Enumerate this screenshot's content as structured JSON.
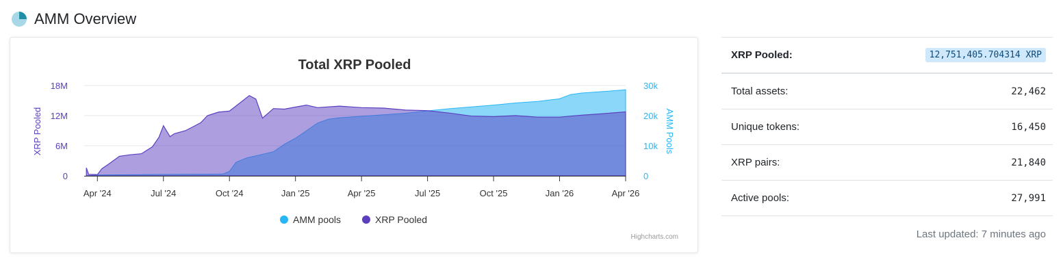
{
  "header": {
    "title": "AMM Overview",
    "icon": "pie-chart-icon"
  },
  "chart_data": {
    "type": "area",
    "title": "Total XRP Pooled",
    "y_left_label": "XRP Pooled",
    "y_right_label": "AMM Pools",
    "y_left_ticks": [
      "0",
      "6M",
      "12M",
      "18M"
    ],
    "y_right_ticks": [
      "0",
      "10k",
      "20k",
      "30k"
    ],
    "y_left_range": [
      0,
      18000000
    ],
    "y_right_range": [
      0,
      30000
    ],
    "x_ticks": [
      "Apr '24",
      "Jul '24",
      "Oct '24",
      "Jan '25",
      "Apr '25",
      "Jul '25",
      "Oct '25",
      "Jan '26",
      "Apr '26"
    ],
    "x_tick_months": [
      0,
      3,
      6,
      9,
      12,
      15,
      18,
      21,
      24
    ],
    "x_range_months": [
      -0.6,
      24
    ],
    "credit": "Highcharts.com",
    "legend_position": "bottom-center",
    "series": [
      {
        "name": "AMM pools",
        "axis": "right",
        "color": "#29b6f6",
        "points": [
          [
            -0.5,
            0
          ],
          [
            0,
            300
          ],
          [
            1,
            350
          ],
          [
            2,
            400
          ],
          [
            3,
            450
          ],
          [
            4,
            500
          ],
          [
            5,
            550
          ],
          [
            5.7,
            600
          ],
          [
            6,
            1500
          ],
          [
            6.3,
            4500
          ],
          [
            6.8,
            6000
          ],
          [
            7.3,
            6800
          ],
          [
            8,
            8000
          ],
          [
            8.5,
            10500
          ],
          [
            9,
            12500
          ],
          [
            9.5,
            15000
          ],
          [
            10,
            17500
          ],
          [
            10.5,
            18800
          ],
          [
            11,
            19300
          ],
          [
            12,
            19800
          ],
          [
            13,
            20300
          ],
          [
            14,
            20800
          ],
          [
            15,
            21600
          ],
          [
            16,
            22300
          ],
          [
            17,
            22900
          ],
          [
            18,
            23500
          ],
          [
            19,
            24200
          ],
          [
            20,
            24700
          ],
          [
            21,
            25600
          ],
          [
            21.5,
            27000
          ],
          [
            22,
            27500
          ],
          [
            23,
            28000
          ],
          [
            24,
            28600
          ]
        ]
      },
      {
        "name": "XRP Pooled",
        "axis": "left",
        "color": "#5b3fbf",
        "points": [
          [
            -0.5,
            1600000
          ],
          [
            -0.4,
            300000
          ],
          [
            0,
            250000
          ],
          [
            0.2,
            1400000
          ],
          [
            0.5,
            2300000
          ],
          [
            1,
            3900000
          ],
          [
            1.5,
            4200000
          ],
          [
            2,
            4400000
          ],
          [
            2.5,
            5800000
          ],
          [
            2.8,
            7700000
          ],
          [
            3,
            10000000
          ],
          [
            3.3,
            7800000
          ],
          [
            3.5,
            8400000
          ],
          [
            4,
            9000000
          ],
          [
            4.4,
            9900000
          ],
          [
            4.7,
            10600000
          ],
          [
            5,
            12000000
          ],
          [
            5.5,
            12700000
          ],
          [
            6,
            12900000
          ],
          [
            6.5,
            14600000
          ],
          [
            6.9,
            16000000
          ],
          [
            7.2,
            15300000
          ],
          [
            7.5,
            11500000
          ],
          [
            8,
            13400000
          ],
          [
            8.5,
            13300000
          ],
          [
            9,
            13700000
          ],
          [
            9.5,
            14100000
          ],
          [
            10,
            13600000
          ],
          [
            11,
            13900000
          ],
          [
            12,
            13600000
          ],
          [
            13,
            13500000
          ],
          [
            14,
            13100000
          ],
          [
            15,
            13000000
          ],
          [
            16,
            12500000
          ],
          [
            17,
            11900000
          ],
          [
            18,
            11800000
          ],
          [
            19,
            12000000
          ],
          [
            20,
            11700000
          ],
          [
            21,
            11700000
          ],
          [
            22,
            12100000
          ],
          [
            23,
            12400000
          ],
          [
            24,
            12750000
          ]
        ]
      }
    ]
  },
  "stats": {
    "xrp_pooled_label": "XRP Pooled:",
    "xrp_pooled_value": "12,751,405.704314 XRP",
    "rows": [
      {
        "label": "Total assets:",
        "value": "22,462"
      },
      {
        "label": "Unique tokens:",
        "value": "16,450"
      },
      {
        "label": "XRP pairs:",
        "value": "21,840"
      },
      {
        "label": "Active pools:",
        "value": "27,991"
      }
    ],
    "last_updated": "Last updated: 7 minutes ago"
  }
}
